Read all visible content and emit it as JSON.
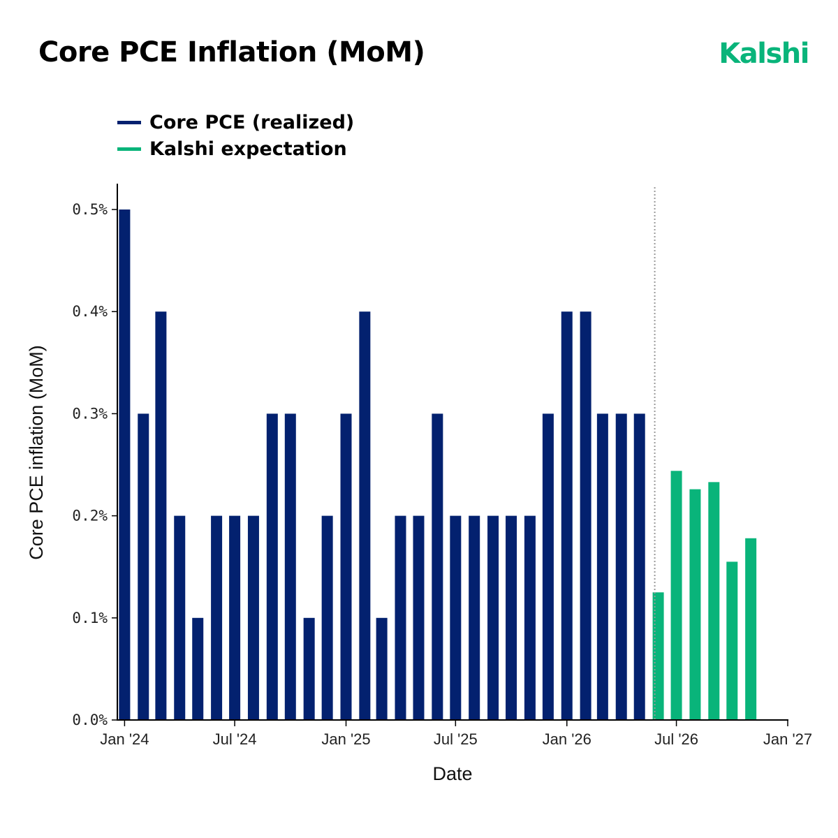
{
  "header": {
    "title": "Core PCE Inflation (MoM)",
    "brand": "Kalshi"
  },
  "colors": {
    "realized": "#03216f",
    "expectation": "#09b47a",
    "axis": "#000000",
    "divider": "#999999"
  },
  "chart_data": {
    "type": "bar",
    "xlabel": "Date",
    "ylabel": "Core PCE inflation (MoM)",
    "ylim": [
      0,
      0.5
    ],
    "y_ticks": [
      0.0,
      0.1,
      0.2,
      0.3,
      0.4,
      0.5
    ],
    "y_tick_labels": [
      "0.0%",
      "0.1%",
      "0.2%",
      "0.3%",
      "0.4%",
      "0.5%"
    ],
    "x_range": [
      "2023-12-20",
      "2027-01-01"
    ],
    "x_ticks": [
      "2024-01",
      "2024-07",
      "2025-01",
      "2025-07",
      "2026-01",
      "2026-07",
      "2027-01"
    ],
    "x_tick_labels": [
      "Jan '24",
      "Jul '24",
      "Jan '25",
      "Jul '25",
      "Jan '26",
      "Jul '26",
      "Jan '27"
    ],
    "legend_position": "top-left",
    "grid": false,
    "divider_month": "2026-06",
    "series": [
      {
        "name": "Core PCE (realized)",
        "x": [
          "2024-01",
          "2024-02",
          "2024-03",
          "2024-04",
          "2024-05",
          "2024-06",
          "2024-07",
          "2024-08",
          "2024-09",
          "2024-10",
          "2024-11",
          "2024-12",
          "2025-01",
          "2025-02",
          "2025-03",
          "2025-04",
          "2025-05",
          "2025-06",
          "2025-07",
          "2025-08",
          "2025-09",
          "2025-10",
          "2025-11",
          "2025-12",
          "2026-01",
          "2026-02",
          "2026-03",
          "2026-04",
          "2026-05"
        ],
        "values": [
          0.5,
          0.3,
          0.4,
          0.2,
          0.1,
          0.2,
          0.2,
          0.2,
          0.3,
          0.3,
          0.1,
          0.2,
          0.3,
          0.4,
          0.1,
          0.2,
          0.2,
          0.3,
          0.2,
          0.2,
          0.2,
          0.2,
          0.2,
          0.3,
          0.4,
          0.4,
          0.3,
          0.3,
          0.3
        ]
      },
      {
        "name": "Kalshi expectation",
        "x": [
          "2026-06",
          "2026-07",
          "2026-08",
          "2026-09",
          "2026-10",
          "2026-11"
        ],
        "values": [
          0.125,
          0.244,
          0.226,
          0.233,
          0.155,
          0.178
        ]
      }
    ]
  }
}
